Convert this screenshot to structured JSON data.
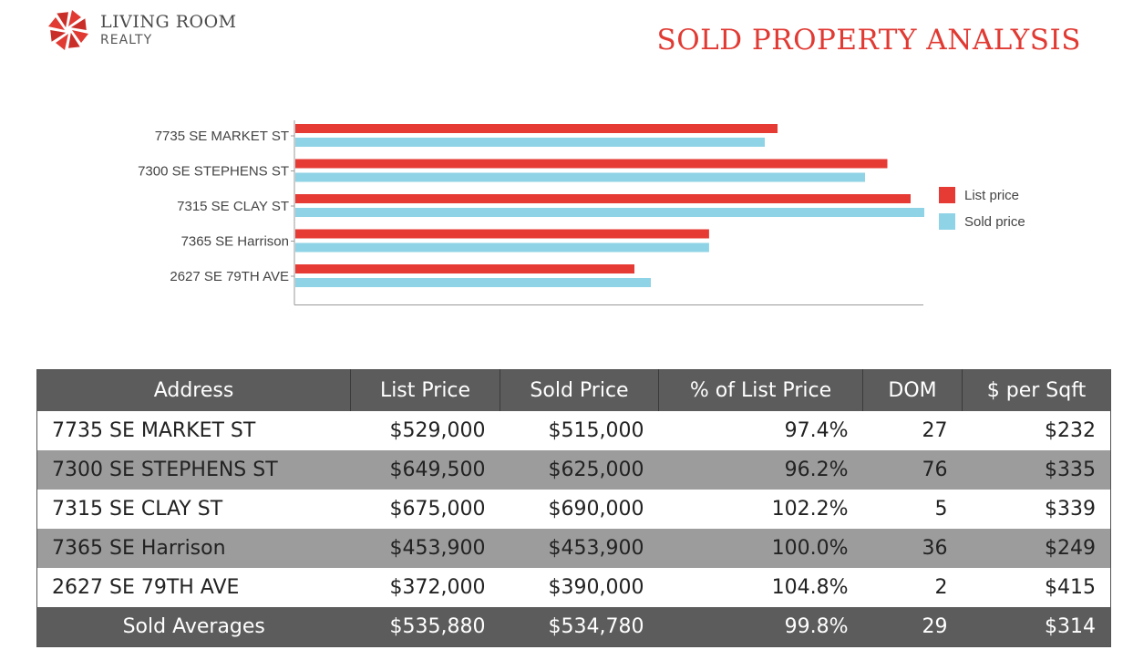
{
  "brand": {
    "name": "LIVING ROOM",
    "sub": "REALTY",
    "color": "#e03a33"
  },
  "page_title": "SOLD PROPERTY ANALYSIS",
  "chart_data": {
    "type": "bar",
    "orientation": "horizontal",
    "categories": [
      "7735 SE MARKET ST",
      "7300 SE STEPHENS ST",
      "7315 SE CLAY ST",
      "7365 SE Harrison",
      "2627 SE 79TH AVE"
    ],
    "series": [
      {
        "name": "List price",
        "color": "#e63b35",
        "values": [
          529000,
          649500,
          675000,
          453900,
          372000
        ]
      },
      {
        "name": "Sold price",
        "color": "#8fd3e6",
        "values": [
          515000,
          625000,
          690000,
          453900,
          390000
        ]
      }
    ],
    "xlim": [
      0,
      690000
    ],
    "grid": false,
    "legend": "right"
  },
  "table": {
    "headers": [
      "Address",
      "List Price",
      "Sold Price",
      "% of List Price",
      "DOM",
      "$ per Sqft"
    ],
    "rows": [
      [
        "7735 SE MARKET ST",
        "$529,000",
        "$515,000",
        "97.4%",
        "27",
        "$232"
      ],
      [
        "7300 SE STEPHENS ST",
        "$649,500",
        "$625,000",
        "96.2%",
        "76",
        "$335"
      ],
      [
        "7315 SE CLAY ST",
        "$675,000",
        "$690,000",
        "102.2%",
        "5",
        "$339"
      ],
      [
        "7365 SE Harrison",
        "$453,900",
        "$453,900",
        "100.0%",
        "36",
        "$249"
      ],
      [
        "2627 SE 79TH AVE",
        "$372,000",
        "$390,000",
        "104.8%",
        "2",
        "$415"
      ]
    ],
    "averages": [
      "Sold Averages",
      "$535,880",
      "$534,780",
      "99.8%",
      "29",
      "$314"
    ]
  }
}
